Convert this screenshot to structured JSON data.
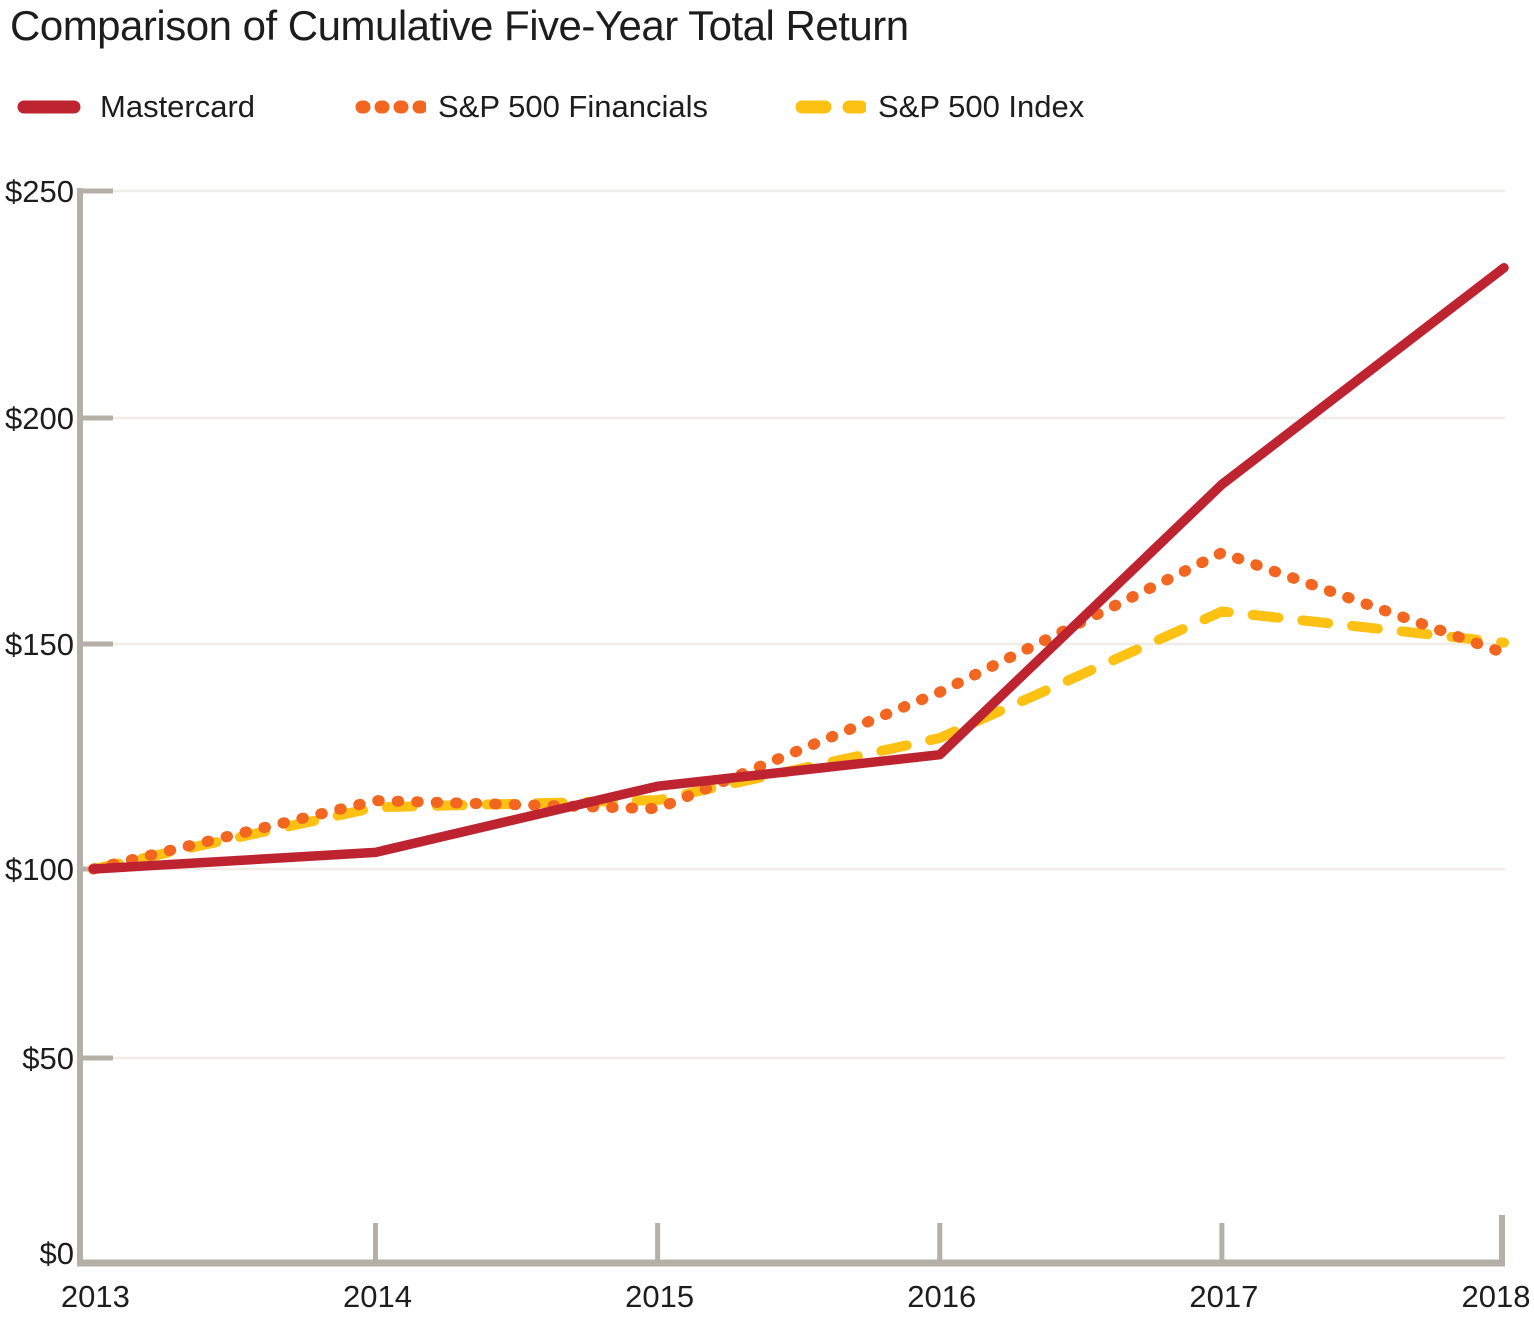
{
  "chart_data": {
    "type": "line",
    "title": "Comparison of Cumulative Five-Year Total Return",
    "x": [
      2013,
      2014,
      2015,
      2016,
      2017,
      2018
    ],
    "x_tick_labels": [
      "2013",
      "2014",
      "2015",
      "2016",
      "2017",
      "2018"
    ],
    "y_tick_labels": [
      "$250",
      "$200",
      "$150",
      "$100",
      "$50",
      "$0"
    ],
    "y_tick_values": [
      250,
      200,
      150,
      100,
      50,
      0
    ],
    "ylim": [
      0,
      250
    ],
    "grid": "horizontal",
    "legend_position": "top-left",
    "series": [
      {
        "name": "Mastercard",
        "line_style": "solid",
        "color": "#BE2430",
        "values": [
          100,
          103.7,
          118.4,
          125.4,
          185.3,
          233.1
        ]
      },
      {
        "name": "S&P 500 Financials",
        "line_style": "dotted",
        "color": "#F2661F",
        "values": [
          100,
          115.2,
          113.4,
          139.3,
          170.2,
          148.0
        ]
      },
      {
        "name": "S&P 500 Index",
        "line_style": "dashed",
        "color": "#FDC114",
        "values": [
          100,
          113.7,
          115.3,
          129.1,
          157.2,
          150.3
        ]
      }
    ],
    "colors": {
      "axis": "#B4B0A7",
      "gridline": "#F0EDE8",
      "text": "#1D1D1D",
      "background": "#FFFFFF"
    }
  }
}
